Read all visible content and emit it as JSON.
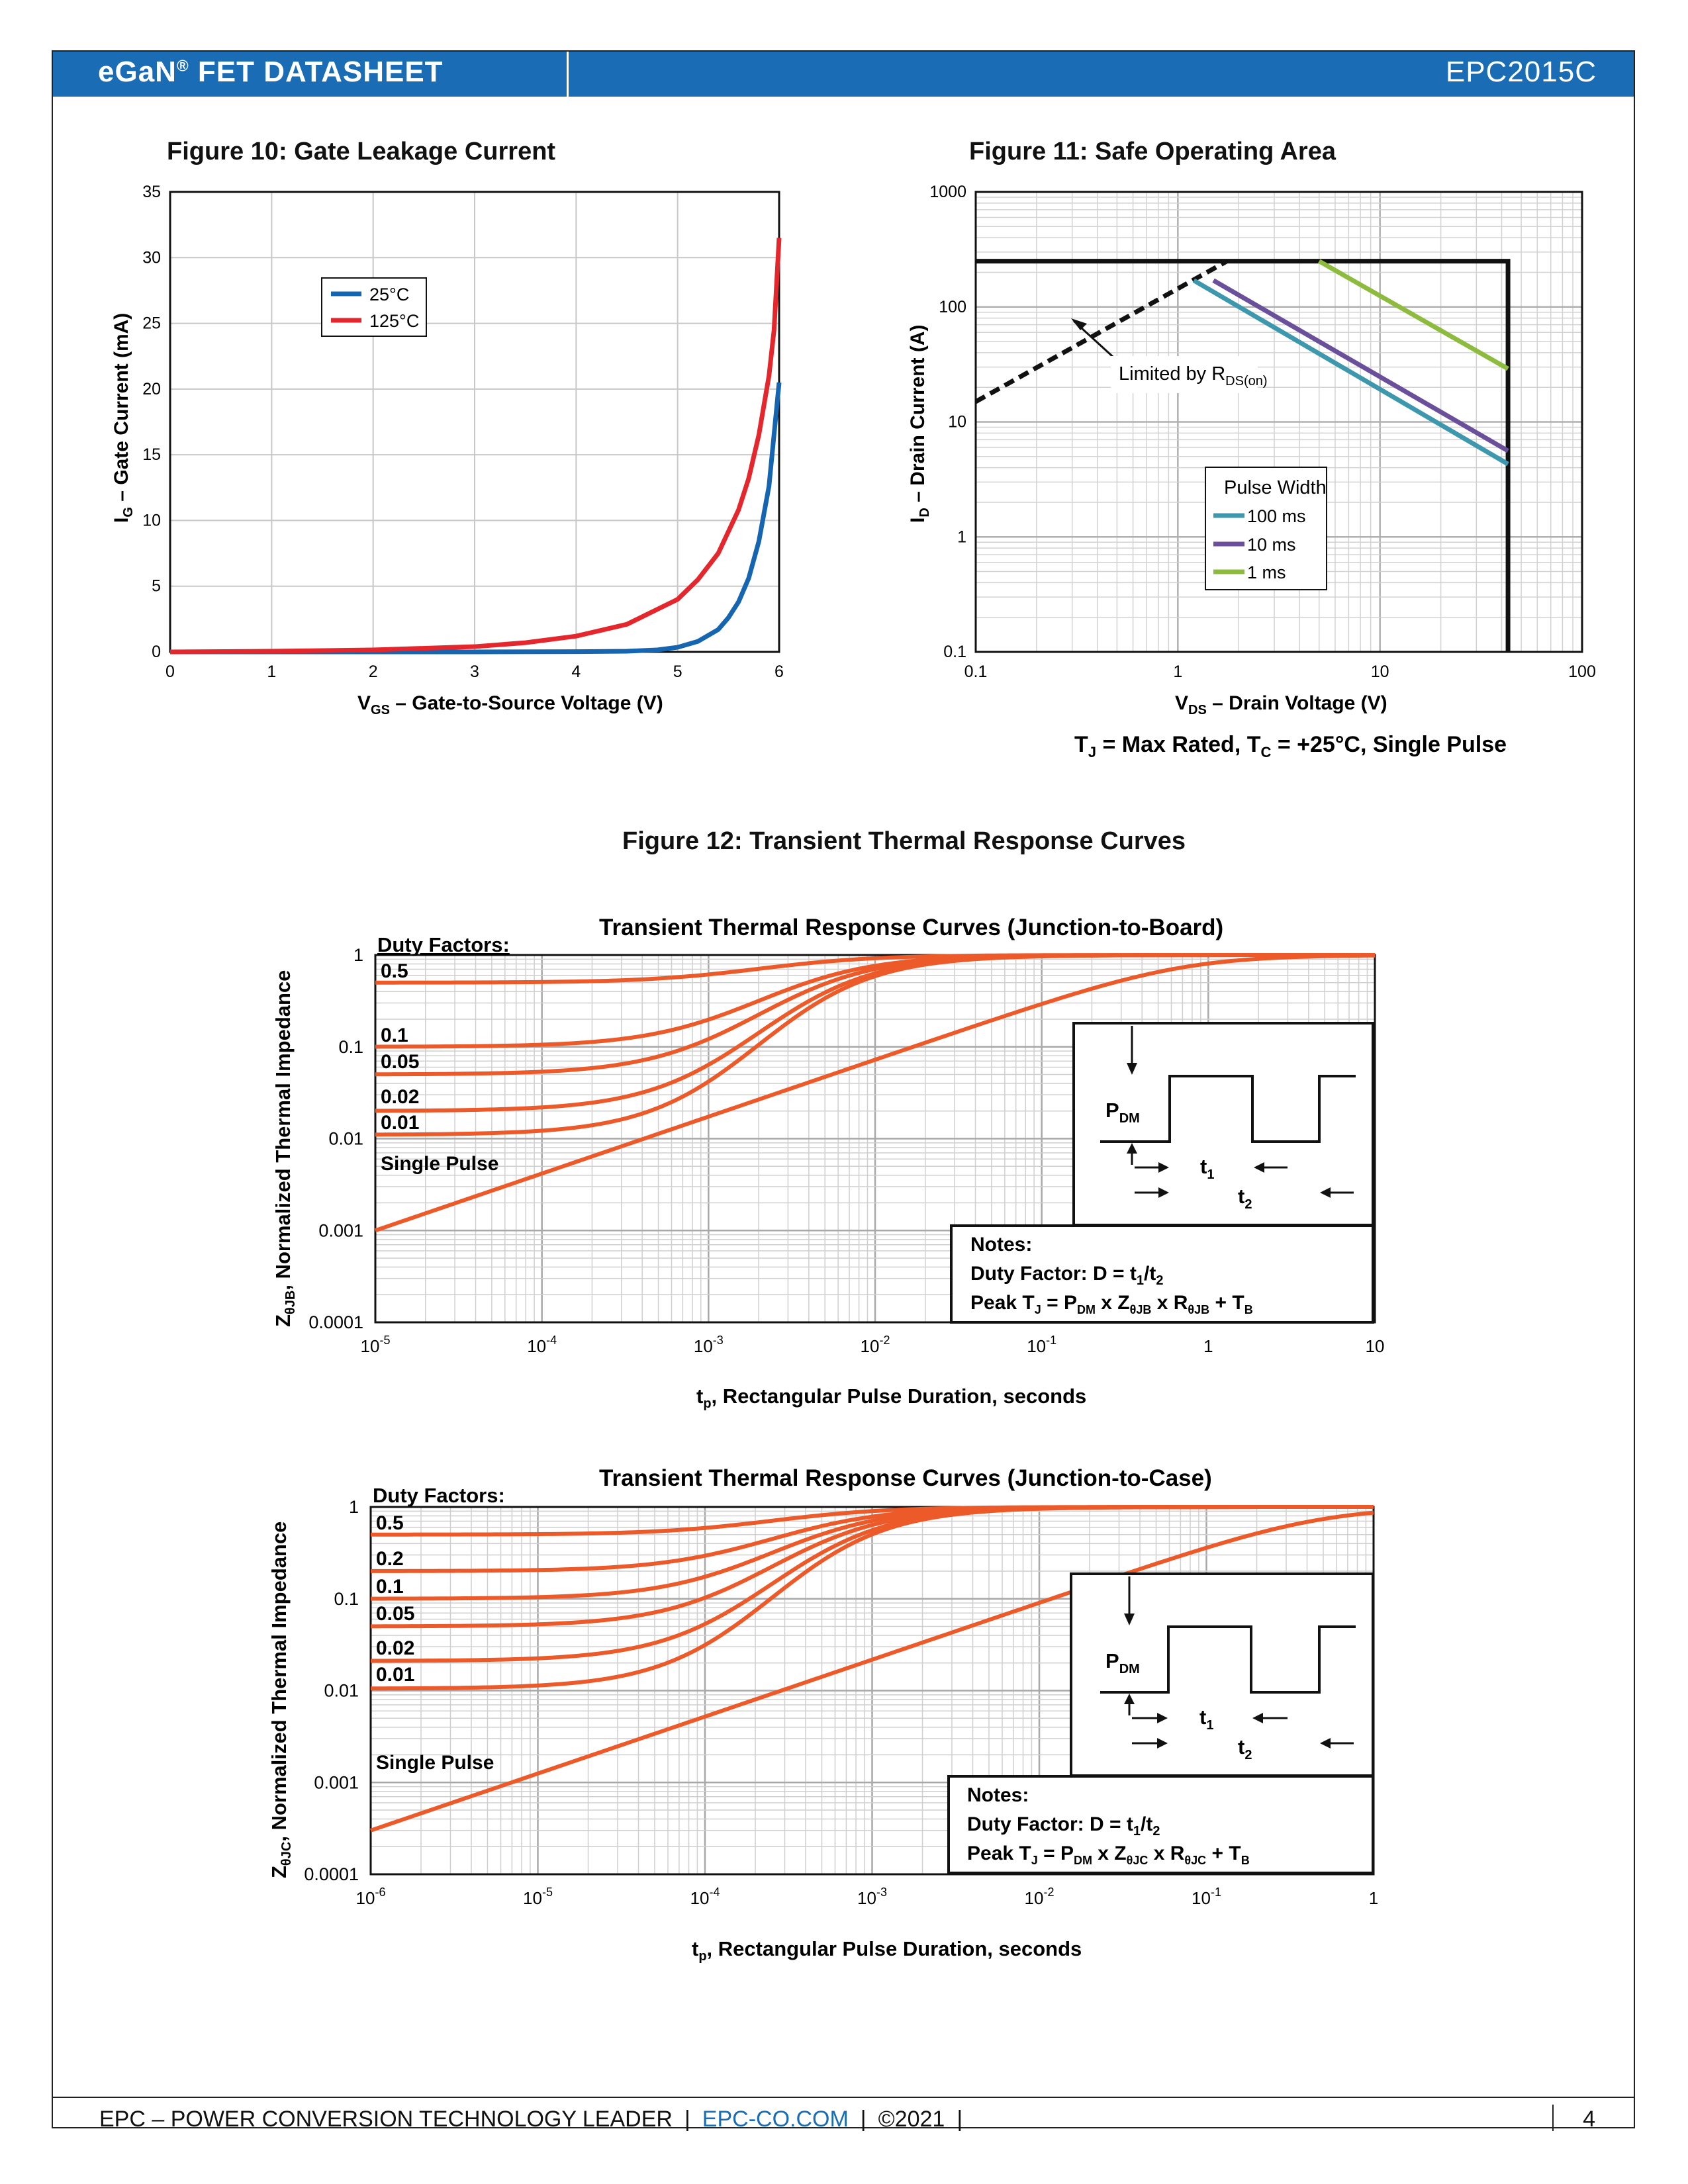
{
  "header": {
    "title_main": "eGaN",
    "title_reg": "®",
    "title_rest": " FET DATASHEET",
    "part_number": "EPC2015C"
  },
  "footer": {
    "company": "EPC – POWER CONVERSION TECHNOLOGY LEADER",
    "sep": "|",
    "website": "EPC-CO.COM",
    "copyright": "©2021",
    "page_number": "4"
  },
  "figure10": {
    "title": "Figure 10: Gate Leakage Current"
  },
  "figure11": {
    "title": "Figure 11: Safe Operating Area",
    "annotation_main": "Limited by R",
    "annotation_sub": "DS(on)",
    "cond": {
      "tj": "T",
      "tj_sub": "J",
      "mid": " = Max Rated, T",
      "tc_sub": "C",
      "end": " = +25°C, Single Pulse"
    }
  },
  "figure12": {
    "title": "Figure 12:  Transient Thermal Response Curves"
  },
  "colors": {
    "blue": "#1565b0",
    "red": "#e3272d",
    "teal": "#3d97ad",
    "purple": "#6a4f9b",
    "green": "#8dbb3e",
    "orange": "#ec5a2a",
    "header": "#1a6db5"
  },
  "chart_data": [
    {
      "id": "gate-leakage",
      "type": "line",
      "title": "Figure 10: Gate Leakage Current",
      "xlabel": "V",
      "xlabel_sub": "GS",
      "xlabel_rest": " – Gate-to-Source Voltage (V)",
      "ylabel": "I",
      "ylabel_sub": "G",
      "ylabel_rest": " – Gate Current (mA)",
      "xlim": [
        0,
        6
      ],
      "ylim": [
        0,
        35
      ],
      "x_ticks": [
        "0",
        "1",
        "2",
        "3",
        "4",
        "5",
        "6"
      ],
      "y_ticks": [
        "0",
        "5",
        "10",
        "15",
        "20",
        "25",
        "30",
        "35"
      ],
      "legend": [
        "25°C",
        "125°C"
      ],
      "series": [
        {
          "name": "25°C",
          "x": [
            0,
            1,
            2,
            3,
            4,
            4.5,
            4.8,
            5,
            5.2,
            5.4,
            5.5,
            5.6,
            5.7,
            5.8,
            5.9,
            6.0
          ],
          "values": [
            0,
            0,
            0,
            0,
            0.02,
            0.05,
            0.15,
            0.35,
            0.8,
            1.7,
            2.6,
            3.8,
            5.6,
            8.4,
            12.6,
            20.5
          ]
        },
        {
          "name": "125°C",
          "x": [
            0,
            1,
            2,
            3,
            3.5,
            4,
            4.5,
            5,
            5.2,
            5.4,
            5.6,
            5.7,
            5.8,
            5.9,
            5.95,
            6.0
          ],
          "values": [
            0,
            0.05,
            0.15,
            0.4,
            0.7,
            1.2,
            2.1,
            4.0,
            5.5,
            7.5,
            10.8,
            13.2,
            16.5,
            21.0,
            24.5,
            31.5
          ]
        }
      ]
    },
    {
      "id": "safe-operating-area",
      "type": "line",
      "title": "Figure 11: Safe Operating Area",
      "xlabel": "V",
      "xlabel_sub": "DS",
      "xlabel_rest": " – Drain Voltage (V)",
      "ylabel": "I",
      "ylabel_sub": "D",
      "ylabel_rest": " – Drain Current (A)",
      "xscale": "log",
      "yscale": "log",
      "xlim": [
        0.1,
        100
      ],
      "ylim": [
        0.1,
        1000
      ],
      "x_ticks": [
        "0.1",
        "1",
        "10",
        "100"
      ],
      "y_ticks": [
        "0.1",
        "1",
        "10",
        "100",
        "1000"
      ],
      "legend_title": "Pulse Width",
      "legend": [
        "100 ms",
        "10 ms",
        "1 ms"
      ],
      "series": [
        {
          "name": "Limited by RDS(on)",
          "style": "dashed",
          "x": [
            0.1,
            1.75
          ],
          "values": [
            15,
            250
          ]
        },
        {
          "name": "Max current / voltage",
          "style": "solid-black",
          "x": [
            0.1,
            43,
            43
          ],
          "values": [
            250,
            250,
            0.1
          ]
        },
        {
          "name": "100 ms",
          "x": [
            1.2,
            43
          ],
          "values": [
            170,
            4.3
          ]
        },
        {
          "name": "10 ms",
          "x": [
            1.5,
            43
          ],
          "values": [
            170,
            5.6
          ]
        },
        {
          "name": "1 ms",
          "x": [
            5,
            43
          ],
          "values": [
            250,
            29
          ]
        }
      ]
    },
    {
      "id": "transient-junction-board",
      "type": "line",
      "title": "Transient Thermal Response Curves (Junction-to-Board)",
      "xlabel": "t",
      "xlabel_sub": "p",
      "xlabel_rest": ", Rectangular Pulse Duration, seconds",
      "ylabel": "Z",
      "ylabel_sub": "θJB",
      "ylabel_rest": ", Normalized Thermal Impedance",
      "xscale": "log",
      "yscale": "log",
      "xlim": [
        1e-05,
        10
      ],
      "ylim": [
        0.0001,
        1
      ],
      "x_ticks": [
        {
          "base": "10",
          "exp": "-5"
        },
        {
          "base": "10",
          "exp": "-4"
        },
        {
          "base": "10",
          "exp": "-3"
        },
        {
          "base": "10",
          "exp": "-2"
        },
        {
          "base": "10",
          "exp": "-1"
        },
        {
          "base": "1",
          "exp": ""
        },
        {
          "base": "10",
          "exp": ""
        }
      ],
      "y_ticks": [
        "0.0001",
        "0.001",
        "0.01",
        "0.1",
        "1"
      ],
      "duty_header": "Duty Factors:",
      "series": [
        {
          "name": "0.5",
          "y0": 0.5
        },
        {
          "name": "0.1",
          "y0": 0.1
        },
        {
          "name": "0.05",
          "y0": 0.05
        },
        {
          "name": "0.02",
          "y0": 0.02
        },
        {
          "name": "0.01",
          "y0": 0.011
        },
        {
          "name": "Single Pulse",
          "y0": 0.001
        }
      ],
      "notes": {
        "title": "Notes:",
        "line1_pre": "Duty Factor: D = t",
        "line1_s1": "1",
        "line1_mid": "/t",
        "line1_s2": "2",
        "line2_pre": "Peak T",
        "line2_s1": "J",
        "line2_a": " = P",
        "line2_s2": "DM",
        "line2_b": " x Z",
        "line2_s3": "θJB",
        "line2_c": " x R",
        "line2_s4": "θJB",
        "line2_d": " + T",
        "line2_s5": "B"
      },
      "pulse_labels": {
        "p": "P",
        "p_sub": "DM",
        "t": "t",
        "t1_sub": "1",
        "t2_sub": "2"
      }
    },
    {
      "id": "transient-junction-case",
      "type": "line",
      "title": "Transient Thermal Response Curves (Junction-to-Case)",
      "xlabel": "t",
      "xlabel_sub": "p",
      "xlabel_rest": ", Rectangular Pulse Duration, seconds",
      "ylabel": "Z",
      "ylabel_sub": "θJC",
      "ylabel_rest": ", Normalized Thermal Impedance",
      "xscale": "log",
      "yscale": "log",
      "xlim": [
        1e-06,
        1
      ],
      "ylim": [
        0.0001,
        1
      ],
      "x_ticks": [
        {
          "base": "10",
          "exp": "-6"
        },
        {
          "base": "10",
          "exp": "-5"
        },
        {
          "base": "10",
          "exp": "-4"
        },
        {
          "base": "10",
          "exp": "-3"
        },
        {
          "base": "10",
          "exp": "-2"
        },
        {
          "base": "10",
          "exp": "-1"
        },
        {
          "base": "1",
          "exp": ""
        }
      ],
      "y_ticks": [
        "0.0001",
        "0.001",
        "0.01",
        "0.1",
        "1"
      ],
      "duty_header": "Duty Factors:",
      "series": [
        {
          "name": "0.5",
          "y0": 0.5
        },
        {
          "name": "0.2",
          "y0": 0.2
        },
        {
          "name": "0.1",
          "y0": 0.1
        },
        {
          "name": "0.05",
          "y0": 0.05
        },
        {
          "name": "0.02",
          "y0": 0.021
        },
        {
          "name": "0.01",
          "y0": 0.0105
        },
        {
          "name": "Single Pulse",
          "y0": 0.0003
        }
      ],
      "notes": {
        "title": "Notes:",
        "line1_pre": "Duty Factor: D = t",
        "line1_s1": "1",
        "line1_mid": "/t",
        "line1_s2": "2",
        "line2_pre": "Peak T",
        "line2_s1": "J",
        "line2_a": " = P",
        "line2_s2": "DM",
        "line2_b": " x Z",
        "line2_s3": "θJC",
        "line2_c": " x R",
        "line2_s4": "θJC",
        "line2_d": " + T",
        "line2_s5": "B"
      },
      "pulse_labels": {
        "p": "P",
        "p_sub": "DM",
        "t": "t",
        "t1_sub": "1",
        "t2_sub": "2"
      }
    }
  ]
}
